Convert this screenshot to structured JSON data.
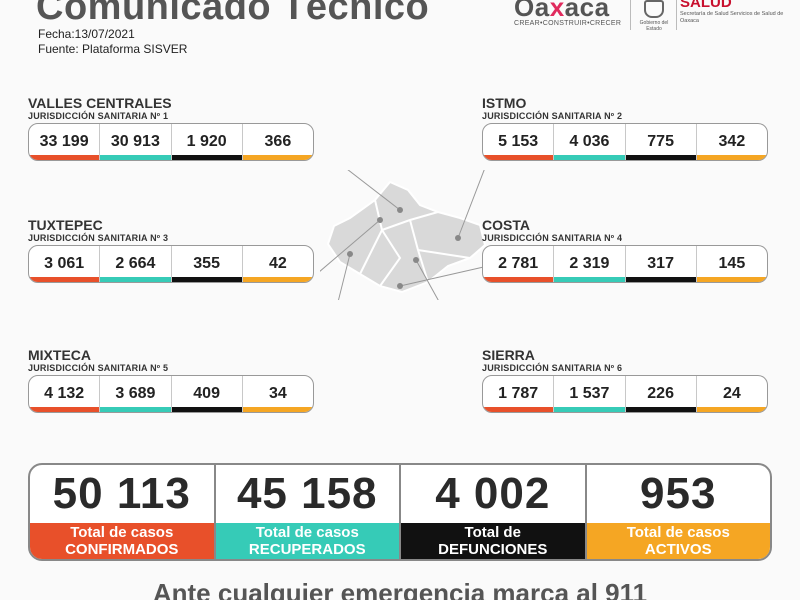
{
  "header": {
    "title": "Comunicado Técnico",
    "fecha": "Fecha:13/07/2021",
    "fuente": "Fuente: Plataforma SISVER"
  },
  "logos": {
    "oaxaca_word_left": "Oa",
    "oaxaca_word_x": "x",
    "oaxaca_word_right": "aca",
    "oaxaca_tag": "CREAR•CONSTRUIR•CRECER",
    "seal_caption": "Gobierno del Estado",
    "salud_word": "SALUD",
    "salud_sub": "Secretaría de Salud Servicios de Salud de Oaxaca"
  },
  "colors": {
    "confirmados": "#e8502a",
    "recuperados": "#36cbb7",
    "defunciones": "#111111",
    "activos": "#f5a623"
  },
  "regions": [
    {
      "name": "VALLES CENTRALES",
      "jurisdiccion": "JURISDICCIÓN SANITARIA Nº 1",
      "values": [
        "33 199",
        "30 913",
        "1 920",
        "366"
      ]
    },
    {
      "name": "ISTMO",
      "jurisdiccion": "JURISDICCIÓN SANITARIA Nº 2",
      "values": [
        "5 153",
        "4 036",
        "775",
        "342"
      ]
    },
    {
      "name": "TUXTEPEC",
      "jurisdiccion": "JURISDICCIÓN SANITARIA Nº 3",
      "values": [
        "3 061",
        "2 664",
        "355",
        "42"
      ]
    },
    {
      "name": "COSTA",
      "jurisdiccion": "JURISDICCIÓN SANITARIA Nº 4",
      "values": [
        "2 781",
        "2 319",
        "317",
        "145"
      ]
    },
    {
      "name": "MIXTECA",
      "jurisdiccion": "JURISDICCIÓN SANITARIA Nº 5",
      "values": [
        "4 132",
        "3 689",
        "409",
        "34"
      ]
    },
    {
      "name": "SIERRA",
      "jurisdiccion": "JURISDICCIÓN SANITARIA Nº 6",
      "values": [
        "1 787",
        "1 537",
        "226",
        "24"
      ]
    }
  ],
  "totals": [
    {
      "value": "50 113",
      "line1": "Total de casos",
      "line2": "CONFIRMADOS"
    },
    {
      "value": "45 158",
      "line1": "Total de casos",
      "line2": "RECUPERADOS"
    },
    {
      "value": "4 002",
      "line1": "Total de",
      "line2": "DEFUNCIONES"
    },
    {
      "value": "953",
      "line1": "Total de casos",
      "line2": "ACTIVOS"
    }
  ],
  "footer": "Ante cualquier emergencia marca al 911"
}
